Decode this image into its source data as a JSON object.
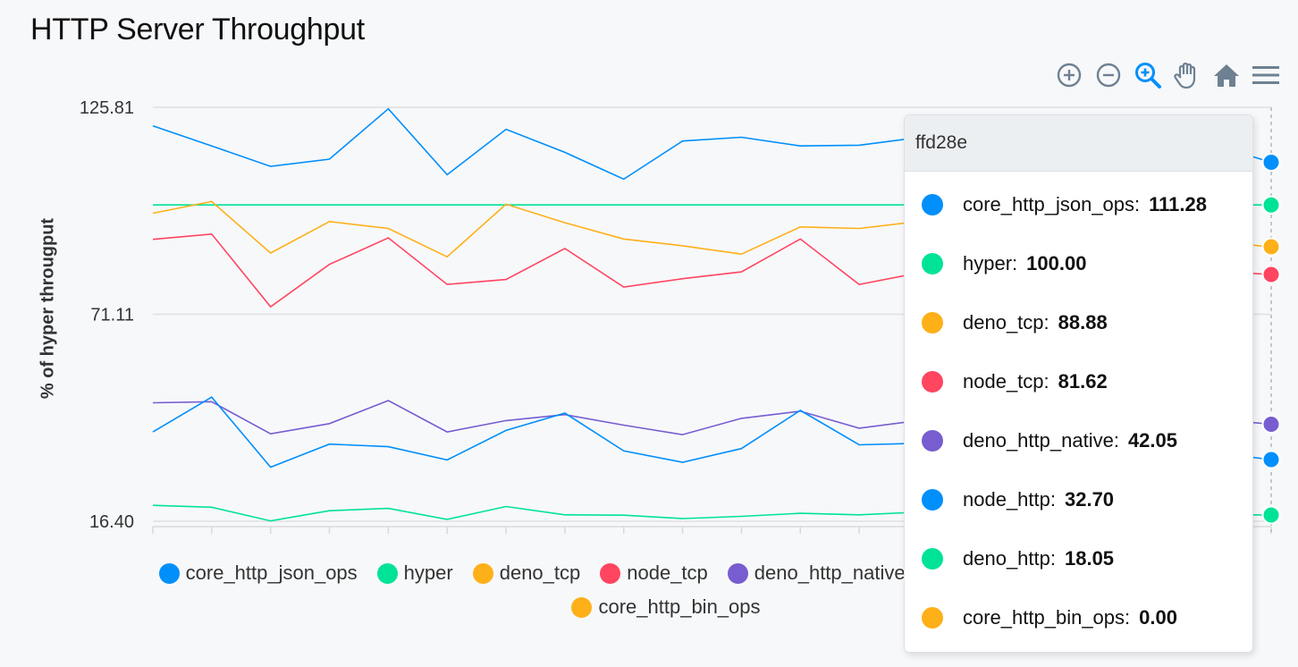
{
  "title": "HTTP Server Throughput",
  "toolbar": {
    "icons": [
      "zoom-in-icon",
      "zoom-out-icon",
      "selection-zoom-icon",
      "pan-icon",
      "reset-home-icon",
      "menu-icon"
    ],
    "accent": "#008ffb",
    "inactive": "#6e8192"
  },
  "chart_data": {
    "type": "line",
    "title": "HTTP Server Throughput",
    "ylabel": "% of hyper througput",
    "xlabel": "",
    "ylim": [
      16.4,
      125.81
    ],
    "yticks": [
      "125.81",
      "71.11",
      "16.40"
    ],
    "x_count": 20,
    "grid": true,
    "legend_position": "bottom",
    "series": [
      {
        "name": "core_http_json_ops",
        "color": "#008ffb",
        "values": [
          120.9,
          115.6,
          110.2,
          112.1,
          125.4,
          108.0,
          120.0,
          113.9,
          106.8,
          116.9,
          117.9,
          115.6,
          115.8,
          117.8,
          120.0,
          118.5,
          117.0,
          119.5,
          116.0,
          111.28
        ],
        "visible": true
      },
      {
        "name": "hyper",
        "color": "#00e396",
        "values": [
          100,
          100,
          100,
          100,
          100,
          100,
          100,
          100,
          100,
          100,
          100,
          100,
          100,
          100,
          100,
          100,
          100,
          100,
          100,
          100
        ],
        "visible": true
      },
      {
        "name": "deno_tcp",
        "color": "#feb019",
        "values": [
          97.8,
          100.9,
          87.3,
          95.6,
          93.8,
          86.3,
          100.2,
          95.3,
          91.0,
          89.2,
          87.0,
          94.2,
          93.8,
          95.6,
          92.5,
          94.0,
          96.0,
          92.0,
          90.5,
          88.88
        ],
        "visible": true
      },
      {
        "name": "node_tcp",
        "color": "#ff4560",
        "values": [
          90.9,
          92.3,
          73.1,
          84.3,
          91.3,
          79.0,
          80.3,
          88.5,
          78.3,
          80.5,
          82.3,
          91.0,
          79.0,
          82.0,
          84.5,
          82.0,
          80.5,
          83.5,
          82.5,
          81.62
        ],
        "visible": true
      },
      {
        "name": "deno_http_native",
        "color": "#775dd0",
        "values": [
          47.7,
          48.0,
          39.5,
          42.2,
          48.3,
          40.0,
          43.0,
          44.6,
          41.8,
          39.3,
          43.6,
          45.5,
          41.0,
          43.0,
          46.5,
          45.0,
          44.0,
          44.8,
          43.5,
          42.05
        ],
        "visible": true
      },
      {
        "name": "node_http",
        "color": "#008ffb",
        "values": [
          40.0,
          49.2,
          30.7,
          36.8,
          36.1,
          32.6,
          40.4,
          45.0,
          35.0,
          32.0,
          35.6,
          45.7,
          36.6,
          37.0,
          40.0,
          38.5,
          36.0,
          35.5,
          34.5,
          32.7
        ],
        "visible": true
      },
      {
        "name": "deno_http",
        "color": "#00e396",
        "values": [
          20.6,
          20.1,
          16.5,
          19.2,
          19.8,
          16.9,
          20.3,
          18.1,
          18.0,
          17.1,
          17.7,
          18.5,
          18.1,
          18.8,
          19.0,
          18.5,
          18.3,
          18.6,
          18.2,
          18.05
        ],
        "visible": true
      },
      {
        "name": "core_http_bin_ops",
        "color": "#feb019",
        "values": [],
        "visible": true
      }
    ],
    "legend": [
      {
        "name": "core_http_json_ops",
        "color": "#008ffb",
        "faded": false
      },
      {
        "name": "hyper",
        "color": "#00e396",
        "faded": false
      },
      {
        "name": "deno_tcp",
        "color": "#feb019",
        "faded": false
      },
      {
        "name": "node_tcp",
        "color": "#ff4560",
        "faded": false
      },
      {
        "name": "deno_http_native",
        "color": "#775dd0",
        "faded": false
      },
      {
        "name": "node_http",
        "color": "#008ffb",
        "faded": true
      },
      {
        "name": "deno_http",
        "color": "#00e396",
        "faded": true
      },
      {
        "name": "core_http_bin_ops",
        "color": "#feb019",
        "faded": false
      }
    ],
    "tooltip": {
      "title": "ffd28e",
      "rows": [
        {
          "name": "core_http_json_ops:",
          "value": "111.28",
          "color": "#008ffb"
        },
        {
          "name": "hyper:",
          "value": "100.00",
          "color": "#00e396"
        },
        {
          "name": "deno_tcp:",
          "value": "88.88",
          "color": "#feb019"
        },
        {
          "name": "node_tcp:",
          "value": "81.62",
          "color": "#ff4560"
        },
        {
          "name": "deno_http_native:",
          "value": "42.05",
          "color": "#775dd0"
        },
        {
          "name": "node_http:",
          "value": "32.70",
          "color": "#008ffb"
        },
        {
          "name": "deno_http:",
          "value": "18.05",
          "color": "#00e396"
        },
        {
          "name": "core_http_bin_ops:",
          "value": "0.00",
          "color": "#feb019"
        }
      ]
    }
  }
}
